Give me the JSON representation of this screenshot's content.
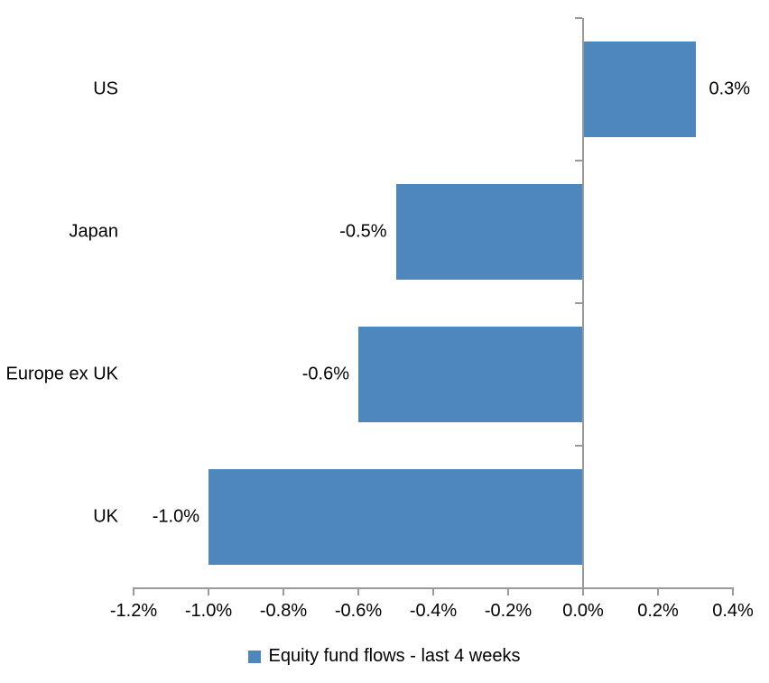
{
  "chart_data": {
    "type": "bar",
    "orientation": "horizontal",
    "title": "",
    "xlabel": "",
    "ylabel": "",
    "categories": [
      "US",
      "Japan",
      "Europe ex UK",
      "UK"
    ],
    "values": [
      0.3,
      -0.5,
      -0.6,
      -1.0
    ],
    "data_labels": [
      "0.3%",
      "-0.5%",
      "-0.6%",
      "-1.0%"
    ],
    "x_ticks": [
      -1.2,
      -1.0,
      -0.8,
      -0.6,
      -0.4,
      -0.2,
      0.0,
      0.2,
      0.4
    ],
    "x_tick_labels": [
      "-1.2%",
      "-1.0%",
      "-0.8%",
      "-0.6%",
      "-0.4%",
      "-0.2%",
      "0.0%",
      "0.2%",
      "0.4%"
    ],
    "xlim": [
      -1.2,
      0.4
    ],
    "grid": false,
    "legend": {
      "label": "Equity fund flows - last 4 weeks",
      "position": "bottom"
    },
    "colors": {
      "bar": "#4D87BE",
      "axis": "#9A9A9A",
      "text": "#000000",
      "background": "#FFFFFF"
    }
  }
}
